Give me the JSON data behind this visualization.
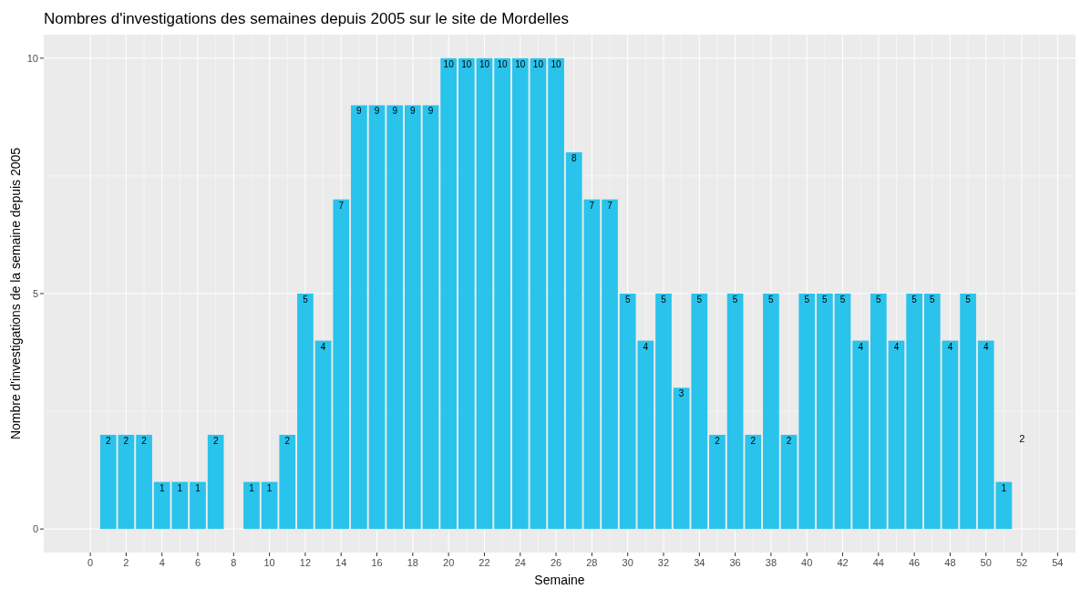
{
  "chart_data": {
    "type": "bar",
    "title": "Nombres d'investigations des semaines depuis 2005 sur le site de Mordelles",
    "xlabel": "Semaine",
    "ylabel": "Nombre d'investigations de la semaine depuis 2005",
    "x": [
      1,
      2,
      3,
      4,
      5,
      6,
      7,
      8,
      9,
      10,
      11,
      12,
      13,
      14,
      15,
      16,
      17,
      18,
      19,
      20,
      21,
      22,
      23,
      24,
      25,
      26,
      27,
      28,
      29,
      30,
      31,
      32,
      33,
      34,
      35,
      36,
      37,
      38,
      39,
      40,
      41,
      42,
      43,
      44,
      45,
      46,
      47,
      48,
      49,
      50,
      51
    ],
    "values": [
      2,
      2,
      2,
      1,
      1,
      1,
      2,
      null,
      1,
      1,
      2,
      5,
      4,
      7,
      9,
      9,
      9,
      9,
      9,
      10,
      10,
      10,
      10,
      10,
      10,
      10,
      8,
      7,
      7,
      5,
      4,
      5,
      3,
      5,
      2,
      5,
      2,
      5,
      2,
      5,
      5,
      5,
      4,
      5,
      4,
      5,
      5,
      4,
      5,
      4,
      1
    ],
    "color": "#29c3ec",
    "data_labels": true,
    "annotations": [
      "2"
    ],
    "xlim": [
      -2.6,
      55
    ],
    "xticks": [
      0,
      2,
      4,
      6,
      8,
      10,
      12,
      14,
      16,
      18,
      20,
      22,
      24,
      26,
      28,
      30,
      32,
      34,
      36,
      38,
      40,
      42,
      44,
      46,
      48,
      50,
      52,
      54
    ],
    "ylim": [
      -0.5,
      10.5
    ],
    "yticks": [
      0,
      5,
      10
    ],
    "grid": true
  }
}
